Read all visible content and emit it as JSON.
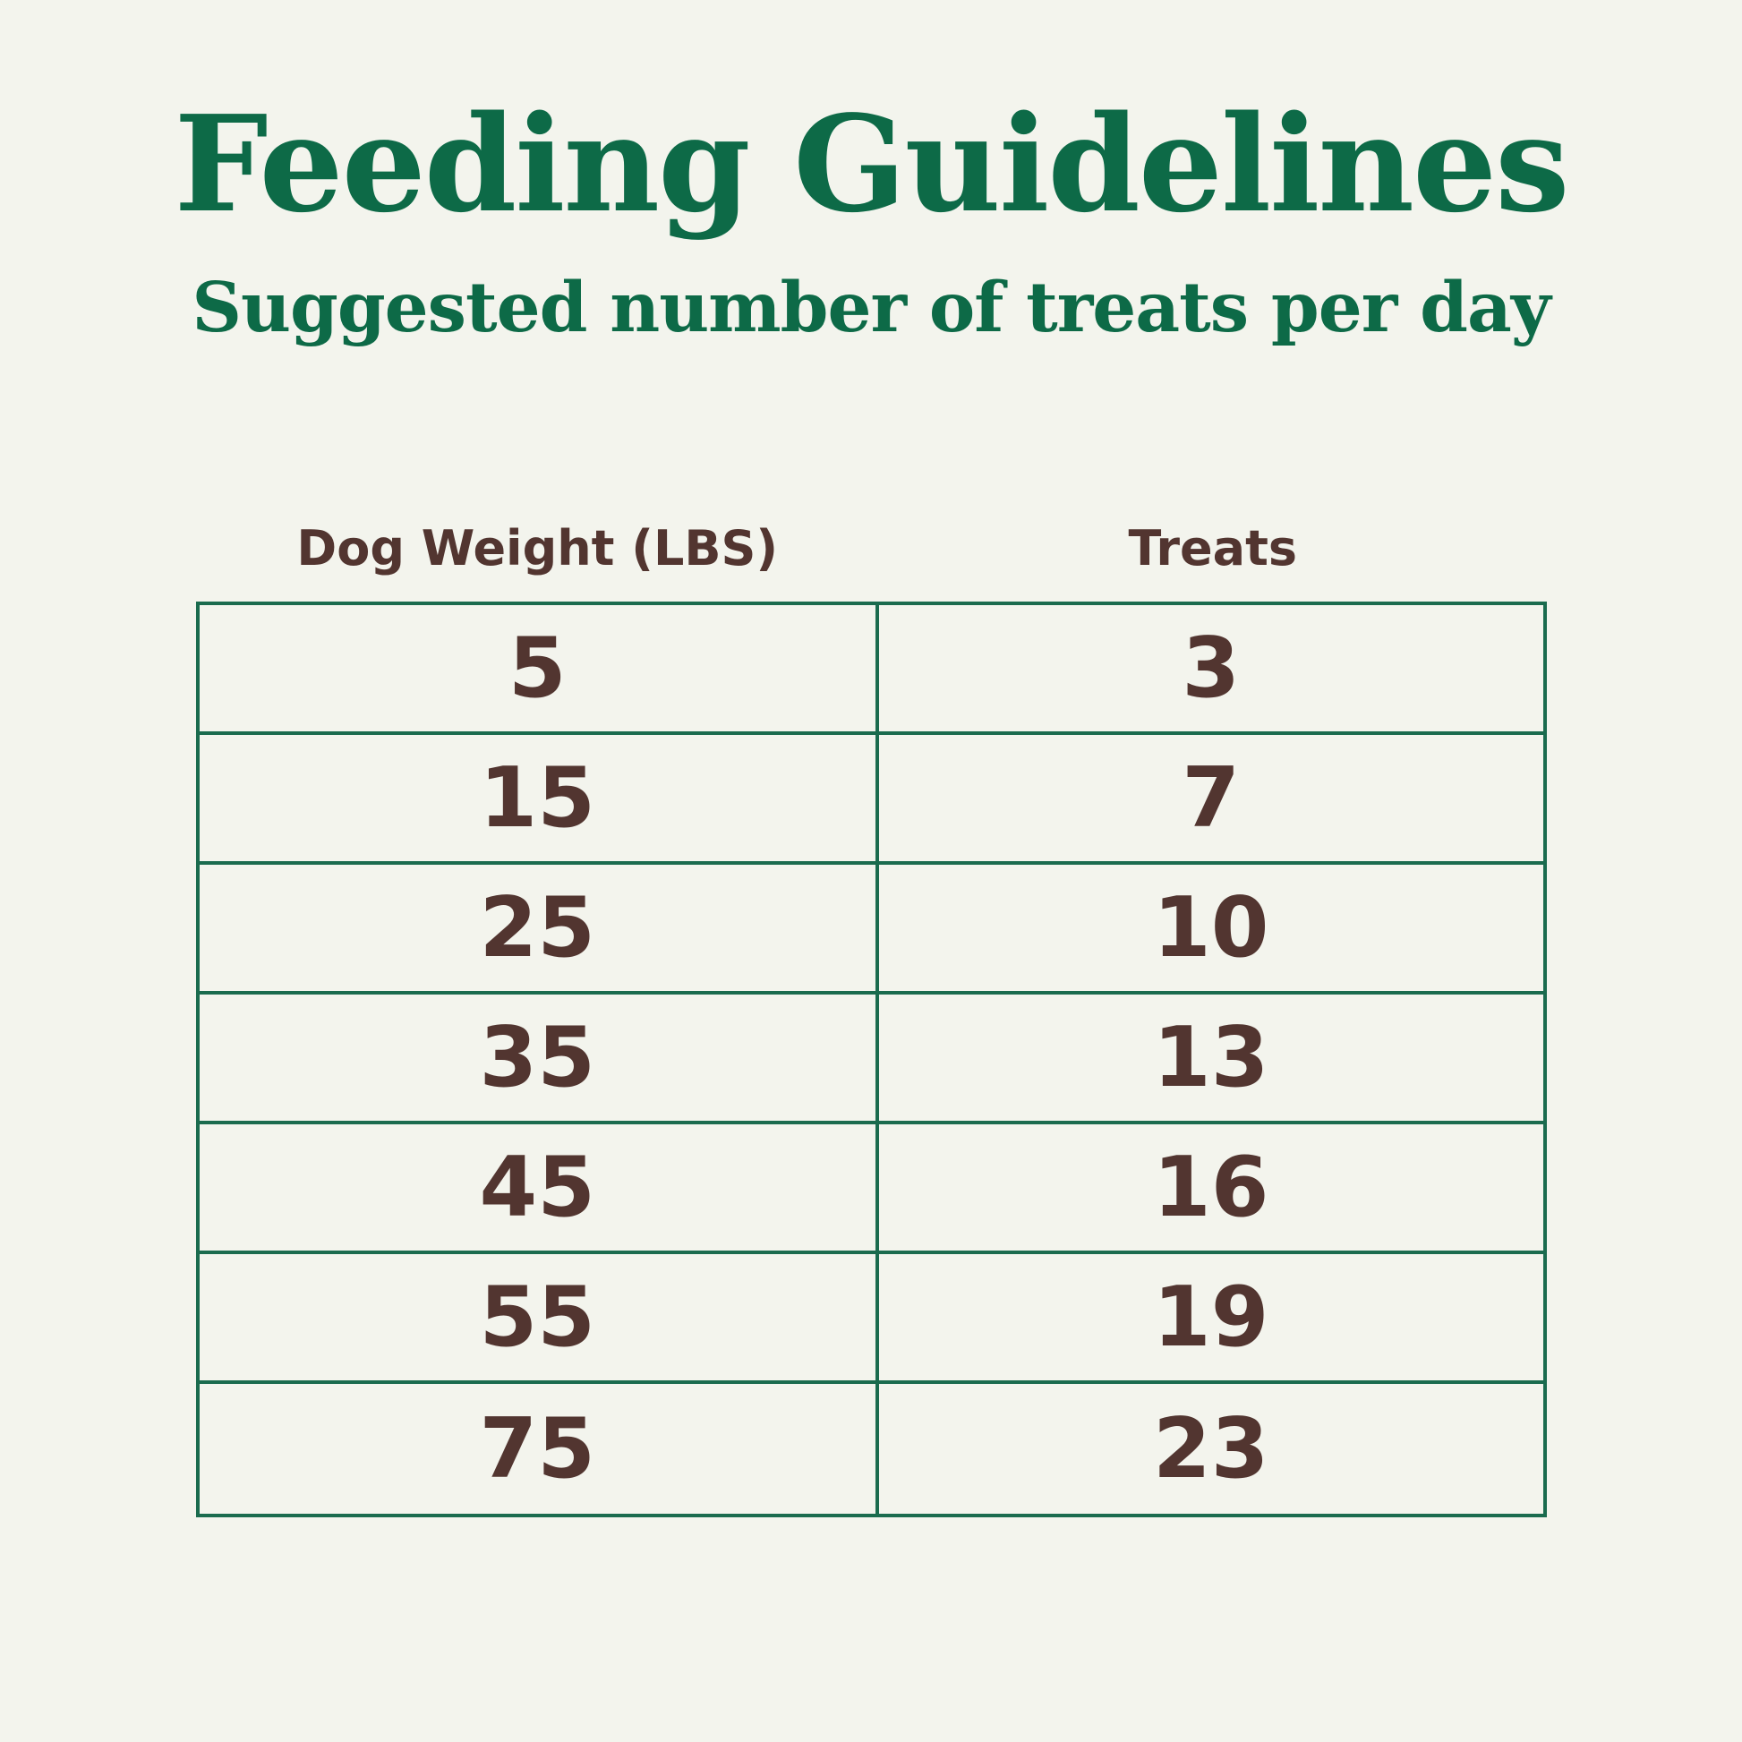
{
  "page": {
    "title": "Feeding Guidelines",
    "subtitle": "Suggested number of treats per day"
  },
  "table": {
    "columns": [
      "Dog Weight (LBS)",
      "Treats"
    ],
    "rows": [
      {
        "weight": "5",
        "treats": "3"
      },
      {
        "weight": "15",
        "treats": "7"
      },
      {
        "weight": "25",
        "treats": "10"
      },
      {
        "weight": "35",
        "treats": "13"
      },
      {
        "weight": "45",
        "treats": "16"
      },
      {
        "weight": "55",
        "treats": "19"
      },
      {
        "weight": "75",
        "treats": "23"
      }
    ]
  },
  "colors": {
    "background": "#f3f4ed",
    "green_text": "#0d6a47",
    "green_border": "#1a6b4e",
    "brown_text": "#523530"
  },
  "chart_data": {
    "type": "table",
    "title": "Feeding Guidelines",
    "subtitle": "Suggested number of treats per day",
    "columns": [
      "Dog Weight (LBS)",
      "Treats"
    ],
    "rows": [
      [
        5,
        3
      ],
      [
        15,
        7
      ],
      [
        25,
        10
      ],
      [
        35,
        13
      ],
      [
        45,
        16
      ],
      [
        55,
        19
      ],
      [
        75,
        23
      ]
    ]
  }
}
